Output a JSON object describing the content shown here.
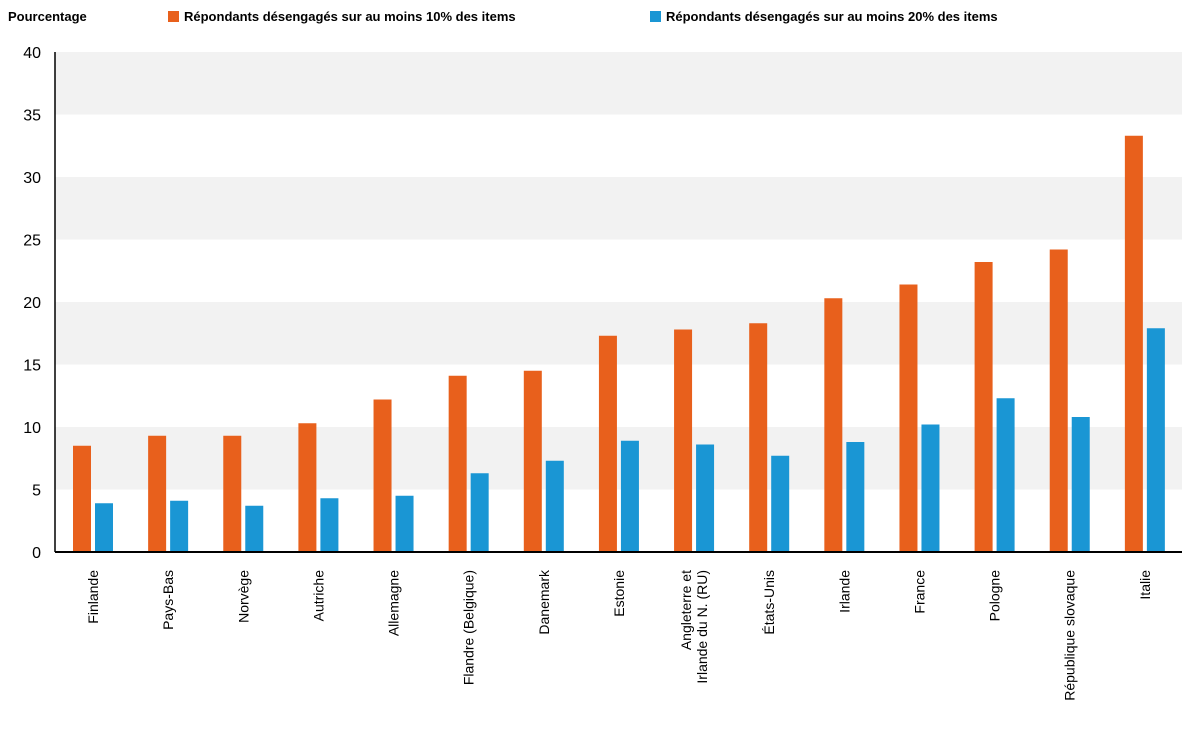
{
  "chart_data": {
    "type": "bar",
    "ylabel": "Pourcentage",
    "ylim": [
      0,
      40
    ],
    "yticks": [
      0,
      5,
      10,
      15,
      20,
      25,
      30,
      35,
      40
    ],
    "grid": "alternating horizontal bands",
    "legend_position": "top",
    "categories": [
      "Finlande",
      "Pays-Bas",
      "Norvège",
      "Autriche",
      "Allemagne",
      "Flandre (Belgique)",
      "Danemark",
      "Estonie",
      "Angleterre et\nIrlande du N. (RU)",
      "États-Unis",
      "Irlande",
      "France",
      "Pologne",
      "République slovaque",
      "Italie"
    ],
    "series": [
      {
        "name": "Répondants désengagés sur au moins 10% des items",
        "color": "#e8601c",
        "values": [
          8.5,
          9.3,
          9.3,
          10.3,
          12.2,
          14.1,
          14.5,
          17.3,
          17.8,
          18.3,
          20.3,
          21.4,
          23.2,
          24.2,
          33.3
        ]
      },
      {
        "name": "Répondants désengagés sur au moins 20% des items",
        "color": "#1a96d4",
        "values": [
          3.9,
          4.1,
          3.7,
          4.3,
          4.5,
          6.3,
          7.3,
          8.9,
          8.6,
          7.7,
          8.8,
          10.2,
          12.3,
          10.8,
          17.9
        ]
      }
    ]
  }
}
